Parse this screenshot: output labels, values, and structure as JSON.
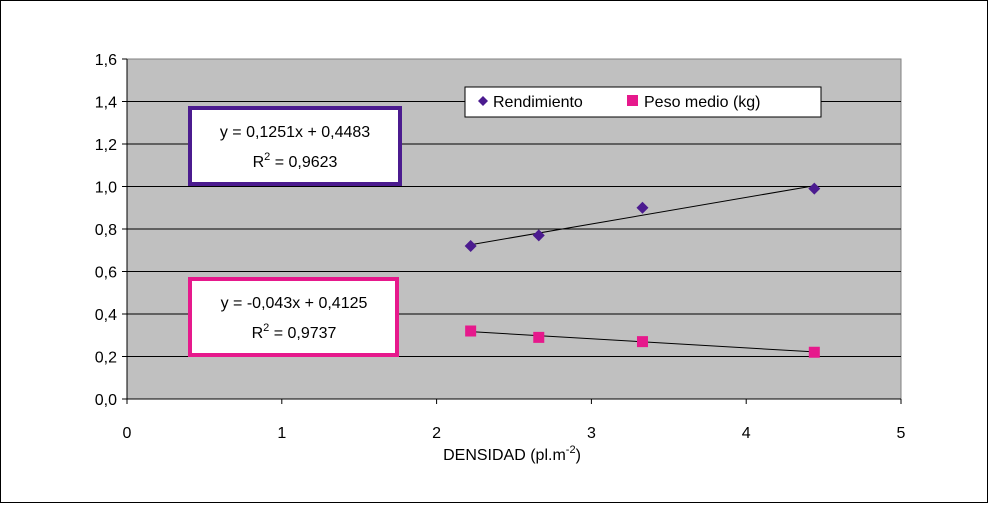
{
  "chart_data": {
    "type": "scatter",
    "xlabel": "DENSIDAD (pl.m",
    "xlabel_sup": "-2",
    "xlabel_suffix": ")",
    "xlim": [
      0,
      5
    ],
    "ylim": [
      0,
      1.6
    ],
    "xticks": [
      "0",
      "1",
      "2",
      "3",
      "4",
      "5"
    ],
    "yticks": [
      "0,0",
      "0,2",
      "0,4",
      "0,6",
      "0,8",
      "1,0",
      "1,2",
      "1,4",
      "1,6"
    ],
    "grid": "horizontal",
    "legend_position": "top-right",
    "plot_background": "#c0c0c0",
    "series": [
      {
        "name": "Rendimiento",
        "marker": "diamond",
        "color": "#4b1b8f",
        "x": [
          2.22,
          2.66,
          3.33,
          4.44
        ],
        "y": [
          0.72,
          0.77,
          0.9,
          0.99
        ],
        "trend": {
          "slope": 0.1251,
          "intercept": 0.4483
        },
        "equation": "y = 0,1251x + 0,4483",
        "r2_label": "R",
        "r2_value": " = 0,9623",
        "box_color": "#4b1b8f"
      },
      {
        "name": "Peso medio (kg)",
        "marker": "square",
        "color": "#e6198c",
        "x": [
          2.22,
          2.66,
          3.33,
          4.44
        ],
        "y": [
          0.32,
          0.29,
          0.27,
          0.22
        ],
        "trend": {
          "slope": -0.043,
          "intercept": 0.4125
        },
        "equation": "y = -0,043x + 0,4125",
        "r2_label": "R",
        "r2_value": " = 0,9737",
        "box_color": "#e6198c"
      }
    ]
  }
}
